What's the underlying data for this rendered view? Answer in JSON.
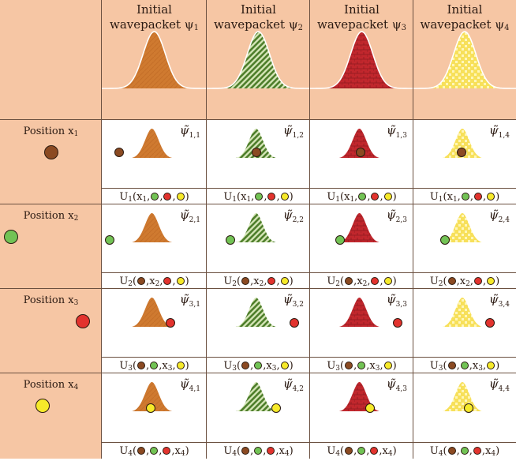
{
  "colors": {
    "peach": "#f6c6a4",
    "brown": "#8b4a22",
    "green": "#72c355",
    "red": "#e2332e",
    "yellow": "#f6ea2a",
    "packet_orange": "#cf7a30",
    "packet_green": "#5f8f3a",
    "packet_red": "#c1272d",
    "packet_yellow": "#f7e05a"
  },
  "headers": [
    {
      "line1": "Initial",
      "line2": "wavepacket",
      "psi": "ψ",
      "sub": "1",
      "pattern": "orange"
    },
    {
      "line1": "Initial",
      "line2": "wavepacket",
      "psi": "ψ",
      "sub": "2",
      "pattern": "green"
    },
    {
      "line1": "Initial",
      "line2": "wavepacket",
      "psi": "ψ",
      "sub": "3",
      "pattern": "red"
    },
    {
      "line1": "Initial",
      "line2": "wavepacket",
      "psi": "ψ",
      "sub": "4",
      "pattern": "yellow"
    }
  ],
  "rows": [
    {
      "label": "Position x",
      "sub": "1",
      "dot": "brown",
      "cells": [
        {
          "psi": "ψ̃",
          "sub": "1,1",
          "u": {
            "prefix": "U",
            "idx": "1",
            "items": [
              {
                "t": "x",
                "s": "1"
              },
              {
                "d": "green"
              },
              {
                "d": "red"
              },
              {
                "d": "yellow"
              }
            ]
          }
        },
        {
          "psi": "ψ̃",
          "sub": "1,2",
          "u": {
            "prefix": "U",
            "idx": "1",
            "items": [
              {
                "t": "x",
                "s": "1"
              },
              {
                "d": "green"
              },
              {
                "d": "red"
              },
              {
                "d": "yellow"
              }
            ]
          }
        },
        {
          "psi": "ψ̃",
          "sub": "1,3",
          "u": {
            "prefix": "U",
            "idx": "1",
            "items": [
              {
                "t": "x",
                "s": "1"
              },
              {
                "d": "green"
              },
              {
                "d": "red"
              },
              {
                "d": "yellow"
              }
            ]
          }
        },
        {
          "psi": "ψ̃",
          "sub": "1,4",
          "u": {
            "prefix": "U",
            "idx": "1",
            "items": [
              {
                "t": "x",
                "s": "1"
              },
              {
                "d": "green"
              },
              {
                "d": "red"
              },
              {
                "d": "yellow"
              }
            ]
          }
        }
      ]
    },
    {
      "label": "Position x",
      "sub": "2",
      "dot": "green",
      "cells": [
        {
          "psi": "ψ̃",
          "sub": "2,1",
          "u": {
            "prefix": "U",
            "idx": "2",
            "items": [
              {
                "d": "brown"
              },
              {
                "t": "x",
                "s": "2"
              },
              {
                "d": "red"
              },
              {
                "d": "yellow"
              }
            ]
          }
        },
        {
          "psi": "ψ̃",
          "sub": "2,2",
          "u": {
            "prefix": "U",
            "idx": "2",
            "items": [
              {
                "d": "brown"
              },
              {
                "t": "x",
                "s": "2"
              },
              {
                "d": "red"
              },
              {
                "d": "yellow"
              }
            ]
          }
        },
        {
          "psi": "ψ̃",
          "sub": "2,3",
          "u": {
            "prefix": "U",
            "idx": "2",
            "items": [
              {
                "d": "brown"
              },
              {
                "t": "x",
                "s": "2"
              },
              {
                "d": "red"
              },
              {
                "d": "yellow"
              }
            ]
          }
        },
        {
          "psi": "ψ̃",
          "sub": "2,4",
          "u": {
            "prefix": "U",
            "idx": "2",
            "items": [
              {
                "d": "brown"
              },
              {
                "t": "x",
                "s": "2"
              },
              {
                "d": "red"
              },
              {
                "d": "yellow"
              }
            ]
          }
        }
      ]
    },
    {
      "label": "Position x",
      "sub": "3",
      "dot": "red",
      "cells": [
        {
          "psi": "ψ̃",
          "sub": "3,1",
          "u": {
            "prefix": "U",
            "idx": "3",
            "items": [
              {
                "d": "brown"
              },
              {
                "d": "green"
              },
              {
                "t": "x",
                "s": "3"
              },
              {
                "d": "yellow"
              }
            ]
          }
        },
        {
          "psi": "ψ̃",
          "sub": "3,2",
          "u": {
            "prefix": "U",
            "idx": "3",
            "items": [
              {
                "d": "brown"
              },
              {
                "d": "green"
              },
              {
                "t": "x",
                "s": "3"
              },
              {
                "d": "yellow"
              }
            ]
          }
        },
        {
          "psi": "ψ̃",
          "sub": "3,3",
          "u": {
            "prefix": "U",
            "idx": "3",
            "items": [
              {
                "d": "brown"
              },
              {
                "d": "green"
              },
              {
                "t": "x",
                "s": "3"
              },
              {
                "d": "yellow"
              }
            ]
          }
        },
        {
          "psi": "ψ̃",
          "sub": "3,4",
          "u": {
            "prefix": "U",
            "idx": "3",
            "items": [
              {
                "d": "brown"
              },
              {
                "d": "green"
              },
              {
                "t": "x",
                "s": "3"
              },
              {
                "d": "yellow"
              }
            ]
          }
        }
      ]
    },
    {
      "label": "Position x",
      "sub": "4",
      "dot": "yellow",
      "cells": [
        {
          "psi": "ψ̃",
          "sub": "4,1",
          "u": {
            "prefix": "U",
            "idx": "4",
            "items": [
              {
                "d": "brown"
              },
              {
                "d": "green"
              },
              {
                "d": "red"
              },
              {
                "t": "x",
                "s": "4"
              }
            ]
          }
        },
        {
          "psi": "ψ̃",
          "sub": "4,2",
          "u": {
            "prefix": "U",
            "idx": "4",
            "items": [
              {
                "d": "brown"
              },
              {
                "d": "green"
              },
              {
                "d": "red"
              },
              {
                "t": "x",
                "s": "4"
              }
            ]
          }
        },
        {
          "psi": "ψ̃",
          "sub": "4,3",
          "u": {
            "prefix": "U",
            "idx": "4",
            "items": [
              {
                "d": "brown"
              },
              {
                "d": "green"
              },
              {
                "d": "red"
              },
              {
                "t": "x",
                "s": "4"
              }
            ]
          }
        },
        {
          "psi": "ψ̃",
          "sub": "4,4",
          "u": {
            "prefix": "U",
            "idx": "4",
            "items": [
              {
                "d": "brown"
              },
              {
                "d": "green"
              },
              {
                "d": "red"
              },
              {
                "t": "x",
                "s": "4"
              }
            ]
          }
        }
      ]
    }
  ]
}
